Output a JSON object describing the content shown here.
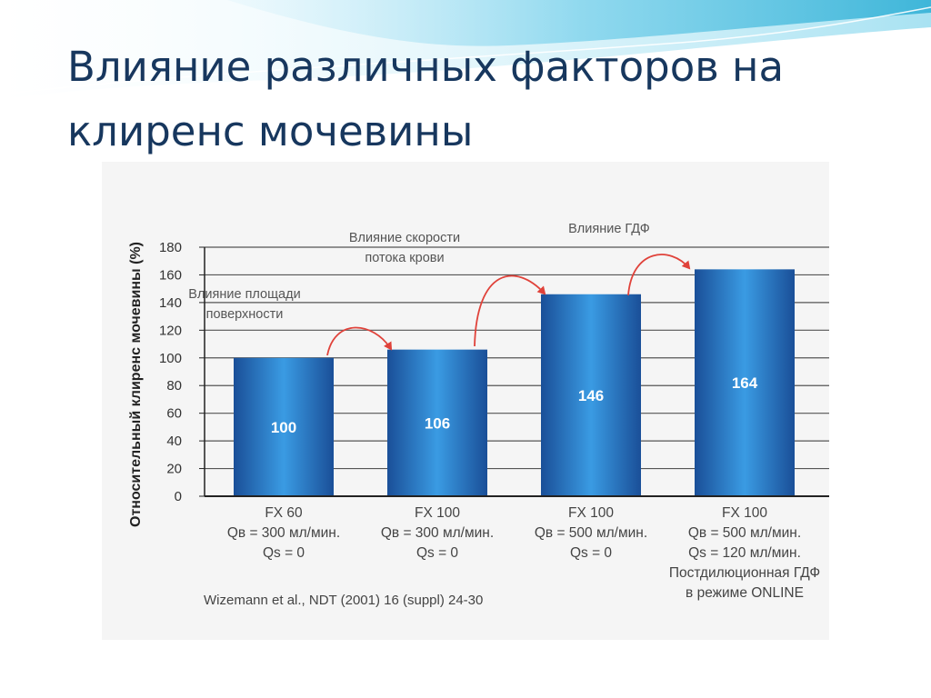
{
  "slide": {
    "title_line1": "Влияние различных факторов на",
    "title_line2": "клиренс мочевины"
  },
  "chart_data": {
    "type": "bar",
    "ylabel": "Относительный клиренс мочевины (%)",
    "ylim": [
      0,
      180
    ],
    "yticks": [
      0,
      20,
      40,
      60,
      80,
      100,
      120,
      140,
      160,
      180
    ],
    "grid": true,
    "values": [
      100,
      106,
      146,
      164
    ],
    "data_labels": [
      "100",
      "106",
      "146",
      "164"
    ],
    "category_lines": [
      [
        "FX 60",
        "Qв = 300 мл/мин.",
        "Qs = 0"
      ],
      [
        "FX 100",
        "Qв = 300 мл/мин.",
        "Qs = 0"
      ],
      [
        "FX 100",
        "Qв = 500 мл/мин.",
        "Qs = 0"
      ],
      [
        "FX 100",
        "Qв = 500 мл/мин.",
        "Qs = 120 мл/мин.",
        "Постдилюционная ГДФ",
        "в режиме ONLINE"
      ]
    ],
    "annotations": [
      {
        "from_bar": 0,
        "to_bar": 1,
        "lines": [
          "Влияние площади",
          "поверхности"
        ]
      },
      {
        "from_bar": 1,
        "to_bar": 2,
        "lines": [
          "Влияние скорости",
          "потока крови"
        ]
      },
      {
        "from_bar": 2,
        "to_bar": 3,
        "lines": [
          "Влияние ГДФ"
        ]
      }
    ],
    "source": "Wizemann et al., NDT (2001) 16 (suppl) 24-30",
    "colors": {
      "bar_dark": "#1e5aa6",
      "bar_light": "#3fa0e6",
      "arrow": "#e0423a"
    }
  }
}
